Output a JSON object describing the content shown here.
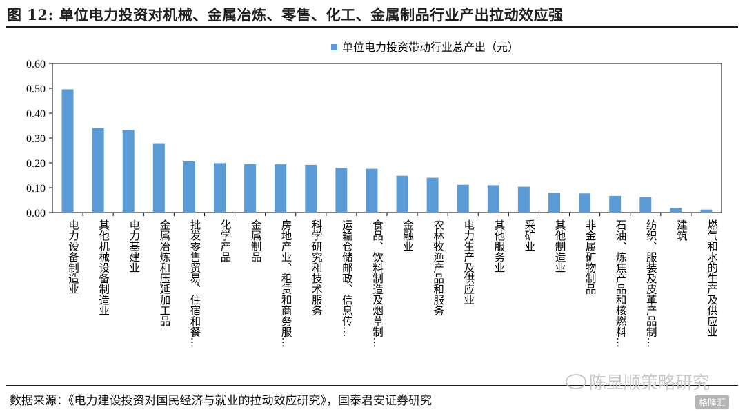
{
  "figure": {
    "title": "图 12:  单位电力投资对机械、金属冶炼、零售、化工、金属制品行业产出拉动效应强",
    "source": "数据来源：《电力建设投资对国民经济与就业的拉动效应研究》，国泰君安证券研究",
    "watermark": "陈显顺策略研究",
    "badge": "格隆汇"
  },
  "chart_data": {
    "type": "bar",
    "title": "",
    "xlabel": "",
    "ylabel": "",
    "ylim": [
      0,
      0.6
    ],
    "yticks": [
      "0.00",
      "0.10",
      "0.20",
      "0.30",
      "0.40",
      "0.50",
      "0.60"
    ],
    "legend": "top-center",
    "grid": false,
    "bar_color": "#5B9BD5",
    "categories": [
      "电力设备制造业",
      "其他机械设备制造业",
      "电力基建业",
      "金属冶炼和压延加工品",
      "批发零售贸易、住宿和餐…",
      "化学产品",
      "金属制品",
      "房地产业、租赁和商务服…",
      "科学研究和技术服务",
      "运输仓储邮政、信息传…",
      "食品、饮料制造及烟草制…",
      "金融业",
      "农林牧渔产品和服务",
      "电力生产及供应业",
      "其他服务业",
      "采矿业",
      "其他制造业",
      "非金属矿物制品",
      "石油、炼焦产品和核燃料…",
      "纺织、服装及皮革产品制…",
      "建筑",
      "燃气和水的生产及供应业"
    ],
    "series": [
      {
        "name": "单位电力投资带动行业总产出（元）",
        "values": [
          0.496,
          0.34,
          0.332,
          0.279,
          0.206,
          0.199,
          0.195,
          0.194,
          0.192,
          0.18,
          0.176,
          0.148,
          0.14,
          0.112,
          0.11,
          0.104,
          0.08,
          0.077,
          0.067,
          0.062,
          0.019,
          0.012
        ]
      }
    ]
  }
}
